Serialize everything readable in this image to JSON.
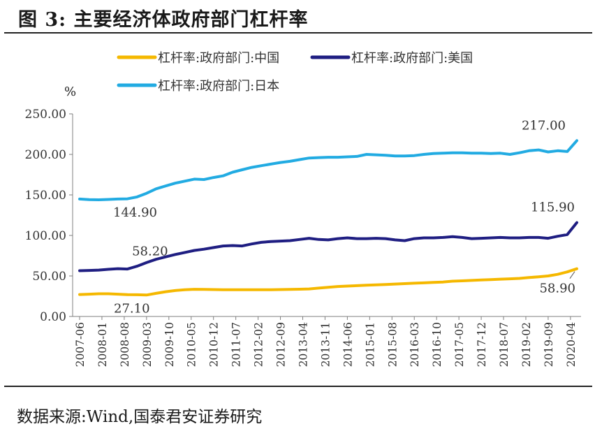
{
  "figure": {
    "title": "图 3:  主要经济体政府部门杠杆率",
    "source": "数据来源:Wind,国泰君安证券研究"
  },
  "chart_data": {
    "type": "line",
    "title": "",
    "unit_label": "%",
    "xlabel": "",
    "ylabel": "%",
    "ylim": [
      0,
      250
    ],
    "yticks": [
      "0.00",
      "50.00",
      "100.00",
      "150.00",
      "200.00",
      "250.00"
    ],
    "x_tick_labels": [
      "2007-06",
      "2008-01",
      "2008-08",
      "2009-03",
      "2009-10",
      "2010-05",
      "2010-12",
      "2011-07",
      "2012-02",
      "2012-09",
      "2013-04",
      "2013-11",
      "2014-06",
      "2015-01",
      "2015-08",
      "2016-03",
      "2016-10",
      "2017-05",
      "2017-12",
      "2018-07",
      "2019-02",
      "2019-09",
      "2020-04"
    ],
    "x": [
      "2007-06",
      "2007-09",
      "2007-12",
      "2008-03",
      "2008-06",
      "2008-09",
      "2008-12",
      "2009-03",
      "2009-06",
      "2009-09",
      "2009-12",
      "2010-03",
      "2010-06",
      "2010-09",
      "2010-12",
      "2011-03",
      "2011-06",
      "2011-09",
      "2011-12",
      "2012-03",
      "2012-06",
      "2012-09",
      "2012-12",
      "2013-03",
      "2013-06",
      "2013-09",
      "2013-12",
      "2014-03",
      "2014-06",
      "2014-09",
      "2014-12",
      "2015-03",
      "2015-06",
      "2015-09",
      "2015-12",
      "2016-03",
      "2016-06",
      "2016-09",
      "2016-12",
      "2017-03",
      "2017-06",
      "2017-09",
      "2017-12",
      "2018-03",
      "2018-06",
      "2018-09",
      "2018-12",
      "2019-03",
      "2019-06",
      "2019-09",
      "2019-12",
      "2020-03",
      "2020-06"
    ],
    "series": [
      {
        "name": "杠杆率:政府部门:中国",
        "color": "#F5B800",
        "values": [
          27.1,
          27.5,
          28.0,
          28.0,
          27.5,
          27.0,
          26.8,
          26.5,
          28.5,
          30.5,
          32.0,
          33.0,
          33.5,
          33.4,
          33.2,
          33.0,
          33.0,
          33.0,
          33.0,
          33.0,
          33.0,
          33.2,
          33.4,
          33.6,
          34.0,
          35.0,
          36.0,
          37.0,
          37.5,
          38.0,
          38.5,
          39.0,
          39.5,
          40.0,
          40.5,
          41.0,
          41.5,
          42.0,
          42.5,
          43.5,
          44.0,
          44.5,
          45.0,
          45.5,
          46.0,
          46.5,
          47.0,
          48.0,
          49.0,
          50.0,
          52.0,
          55.0,
          58.9
        ]
      },
      {
        "name": "杠杆率:政府部门:美国",
        "color": "#1F1E82",
        "values": [
          56.5,
          56.8,
          57.2,
          58.2,
          59.0,
          58.5,
          62.0,
          66.5,
          70.5,
          73.5,
          76.5,
          79.0,
          81.5,
          83.0,
          85.0,
          87.0,
          87.5,
          87.0,
          89.5,
          91.5,
          92.5,
          93.0,
          93.5,
          95.0,
          96.5,
          95.0,
          94.5,
          96.0,
          97.0,
          96.0,
          96.0,
          96.5,
          96.0,
          94.5,
          93.5,
          96.0,
          97.0,
          97.0,
          97.5,
          98.5,
          97.5,
          96.0,
          96.5,
          97.0,
          97.5,
          97.0,
          97.0,
          97.5,
          97.5,
          96.5,
          99.0,
          101.0,
          115.9
        ]
      },
      {
        "name": "杠杆率:政府部门:日本",
        "color": "#22ABE2",
        "values": [
          144.9,
          144.2,
          144.0,
          144.4,
          144.9,
          145.2,
          147.5,
          152.0,
          157.5,
          161.0,
          164.5,
          167.0,
          169.5,
          169.0,
          171.5,
          173.5,
          178.0,
          181.0,
          184.0,
          186.0,
          188.0,
          190.0,
          191.5,
          193.5,
          195.5,
          196.0,
          196.5,
          196.5,
          197.0,
          197.5,
          200.0,
          199.5,
          199.0,
          198.0,
          198.0,
          198.5,
          200.0,
          201.0,
          201.5,
          202.0,
          202.0,
          201.5,
          201.5,
          201.0,
          201.5,
          200.0,
          202.0,
          204.5,
          205.5,
          203.0,
          204.5,
          203.5,
          217.0
        ]
      }
    ],
    "annotations": [
      {
        "text": "217.00",
        "series": 2,
        "index": 52
      },
      {
        "text": "144.90",
        "series": 2,
        "index": 0
      },
      {
        "text": "115.90",
        "series": 1,
        "index": 52
      },
      {
        "text": "58.20",
        "series": 1,
        "index": 3
      },
      {
        "text": "27.10",
        "series": 0,
        "index": 0
      },
      {
        "text": "58.90",
        "series": 0,
        "index": 52
      }
    ],
    "legend_position": "top"
  }
}
